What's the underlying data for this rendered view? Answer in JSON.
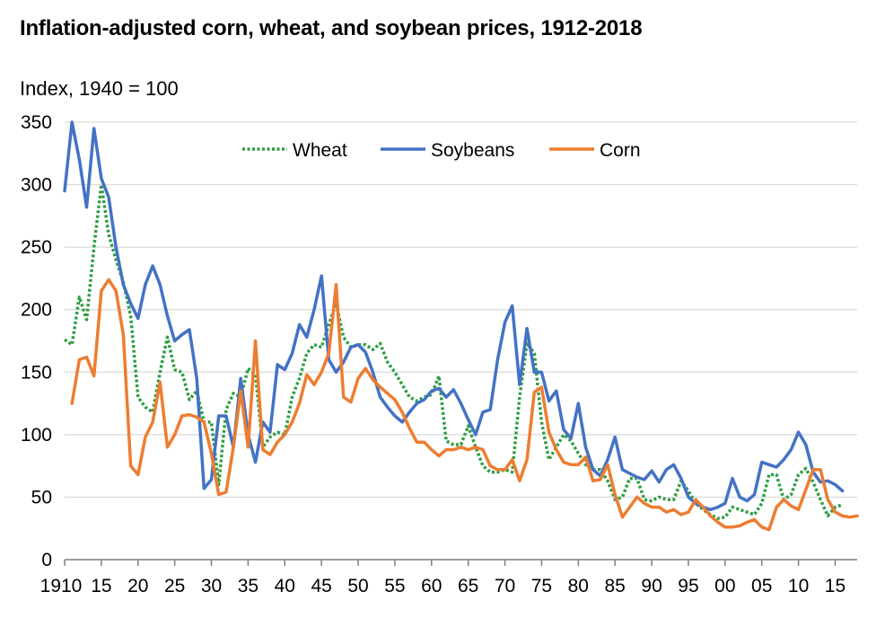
{
  "chart_data": {
    "type": "line",
    "title": "Inflation-adjusted corn, wheat, and soybean prices, 1912-2018",
    "ylabel": "Index, 1940 = 100",
    "xlabel": "",
    "xlim": [
      1910,
      2018
    ],
    "ylim": [
      0,
      350
    ],
    "grid": true,
    "legend_position": "top",
    "x_ticks": [
      1910,
      1915,
      1920,
      1925,
      1930,
      1935,
      1940,
      1945,
      1950,
      1955,
      1960,
      1965,
      1970,
      1975,
      1980,
      1985,
      1990,
      1995,
      2000,
      2005,
      2010,
      2015
    ],
    "x_tick_labels": [
      "1910",
      "15",
      "20",
      "25",
      "30",
      "35",
      "40",
      "45",
      "50",
      "55",
      "60",
      "65",
      "70",
      "75",
      "80",
      "85",
      "90",
      "95",
      "00",
      "05",
      "10",
      "15"
    ],
    "y_ticks": [
      0,
      50,
      100,
      150,
      200,
      250,
      300,
      350
    ],
    "y_tick_labels": [
      "0",
      "50",
      "100",
      "150",
      "200",
      "250",
      "300",
      "350"
    ],
    "series": [
      {
        "name": "Wheat",
        "color": "#2e9e44",
        "style": "dotted",
        "x": [
          1910,
          1911,
          1912,
          1913,
          1914,
          1915,
          1916,
          1917,
          1918,
          1919,
          1920,
          1921,
          1922,
          1923,
          1924,
          1925,
          1926,
          1927,
          1928,
          1929,
          1930,
          1931,
          1932,
          1933,
          1934,
          1935,
          1936,
          1937,
          1938,
          1939,
          1940,
          1941,
          1942,
          1943,
          1944,
          1945,
          1946,
          1947,
          1948,
          1949,
          1950,
          1951,
          1952,
          1953,
          1954,
          1955,
          1956,
          1957,
          1958,
          1959,
          1960,
          1961,
          1962,
          1963,
          1964,
          1965,
          1966,
          1967,
          1968,
          1969,
          1970,
          1971,
          1972,
          1973,
          1974,
          1975,
          1976,
          1977,
          1978,
          1979,
          1980,
          1981,
          1982,
          1983,
          1984,
          1985,
          1986,
          1987,
          1988,
          1989,
          1990,
          1991,
          1992,
          1993,
          1994,
          1995,
          1996,
          1997,
          1998,
          1999,
          2000,
          2001,
          2002,
          2003,
          2004,
          2005,
          2006,
          2007,
          2008,
          2009,
          2010,
          2011,
          2012,
          2013,
          2014,
          2015,
          2016
        ],
        "values": [
          176,
          172,
          210,
          192,
          250,
          300,
          260,
          240,
          222,
          195,
          130,
          122,
          118,
          150,
          178,
          152,
          150,
          128,
          135,
          110,
          110,
          60,
          120,
          133,
          130,
          153,
          148,
          90,
          98,
          102,
          100,
          130,
          145,
          165,
          172,
          170,
          188,
          205,
          178,
          170,
          172,
          172,
          168,
          173,
          158,
          150,
          140,
          130,
          127,
          130,
          132,
          147,
          95,
          92,
          92,
          107,
          90,
          75,
          70,
          70,
          72,
          70,
          130,
          173,
          165,
          110,
          80,
          90,
          100,
          95,
          85,
          76,
          72,
          72,
          63,
          48,
          50,
          65,
          65,
          48,
          47,
          50,
          48,
          48,
          63,
          55,
          45,
          40,
          36,
          33,
          34,
          42,
          40,
          38,
          36,
          45,
          68,
          68,
          48,
          52,
          68,
          73,
          62,
          48,
          35,
          42,
          44
        ]
      },
      {
        "name": "Soybeans",
        "color": "#4472c4",
        "style": "solid",
        "x": [
          1910,
          1911,
          1912,
          1913,
          1914,
          1915,
          1916,
          1917,
          1918,
          1919,
          1920,
          1921,
          1922,
          1923,
          1924,
          1925,
          1926,
          1927,
          1928,
          1929,
          1930,
          1931,
          1932,
          1933,
          1934,
          1935,
          1936,
          1937,
          1938,
          1939,
          1940,
          1941,
          1942,
          1943,
          1944,
          1945,
          1946,
          1947,
          1948,
          1949,
          1950,
          1951,
          1952,
          1953,
          1954,
          1955,
          1956,
          1957,
          1958,
          1959,
          1960,
          1961,
          1962,
          1963,
          1964,
          1965,
          1966,
          1967,
          1968,
          1969,
          1970,
          1971,
          1972,
          1973,
          1974,
          1975,
          1976,
          1977,
          1978,
          1979,
          1980,
          1981,
          1982,
          1983,
          1984,
          1985,
          1986,
          1987,
          1988,
          1989,
          1990,
          1991,
          1992,
          1993,
          1994,
          1995,
          1996,
          1997,
          1998,
          1999,
          2000,
          2001,
          2002,
          2003,
          2004,
          2005,
          2006,
          2007,
          2008,
          2009,
          2010,
          2011,
          2012,
          2013,
          2014,
          2015,
          2016,
          2017
        ],
        "values": [
          295,
          350,
          320,
          282,
          345,
          305,
          290,
          250,
          220,
          205,
          193,
          220,
          235,
          220,
          195,
          175,
          180,
          184,
          145,
          57,
          64,
          115,
          115,
          90,
          145,
          100,
          78,
          110,
          102,
          156,
          152,
          165,
          188,
          178,
          200,
          227,
          160,
          150,
          158,
          170,
          172,
          166,
          150,
          130,
          122,
          115,
          110,
          118,
          125,
          128,
          135,
          137,
          130,
          136,
          125,
          112,
          100,
          118,
          120,
          160,
          190,
          203,
          140,
          185,
          150,
          150,
          127,
          135,
          104,
          97,
          125,
          90,
          72,
          67,
          80,
          98,
          72,
          69,
          66,
          64,
          71,
          62,
          72,
          76,
          65,
          50,
          45,
          42,
          40,
          42,
          45,
          65,
          50,
          47,
          52,
          78,
          76,
          74,
          80,
          88,
          102,
          92,
          70,
          62,
          63,
          60,
          55,
          null
        ]
      },
      {
        "name": "Corn",
        "color": "#ed7d31",
        "style": "solid",
        "x": [
          1910,
          1911,
          1912,
          1913,
          1914,
          1915,
          1916,
          1917,
          1918,
          1919,
          1920,
          1921,
          1922,
          1923,
          1924,
          1925,
          1926,
          1927,
          1928,
          1929,
          1930,
          1931,
          1932,
          1933,
          1934,
          1935,
          1936,
          1937,
          1938,
          1939,
          1940,
          1941,
          1942,
          1943,
          1944,
          1945,
          1946,
          1947,
          1948,
          1949,
          1950,
          1951,
          1952,
          1953,
          1954,
          1955,
          1956,
          1957,
          1958,
          1959,
          1960,
          1961,
          1962,
          1963,
          1964,
          1965,
          1966,
          1967,
          1968,
          1969,
          1970,
          1971,
          1972,
          1973,
          1974,
          1975,
          1976,
          1977,
          1978,
          1979,
          1980,
          1981,
          1982,
          1983,
          1984,
          1985,
          1986,
          1987,
          1988,
          1989,
          1990,
          1991,
          1992,
          1993,
          1994,
          1995,
          1996,
          1997,
          1998,
          1999,
          2000,
          2001,
          2002,
          2003,
          2004,
          2005,
          2006,
          2007,
          2008,
          2009,
          2010,
          2011,
          2012,
          2013,
          2014,
          2015,
          2016,
          2017,
          2018
        ],
        "values": [
          null,
          125,
          160,
          162,
          147,
          215,
          224,
          215,
          180,
          75,
          68,
          98,
          110,
          142,
          90,
          100,
          115,
          116,
          114,
          110,
          85,
          52,
          54,
          90,
          135,
          90,
          175,
          88,
          84,
          94,
          100,
          110,
          125,
          148,
          140,
          150,
          165,
          220,
          130,
          126,
          145,
          153,
          144,
          138,
          133,
          128,
          118,
          105,
          94,
          94,
          88,
          83,
          88,
          88,
          90,
          88,
          90,
          88,
          75,
          72,
          72,
          80,
          63,
          80,
          134,
          138,
          102,
          88,
          78,
          76,
          76,
          82,
          63,
          64,
          76,
          52,
          34,
          42,
          50,
          45,
          42,
          42,
          38,
          40,
          36,
          38,
          48,
          42,
          35,
          30,
          26,
          26,
          27,
          30,
          32,
          26,
          24,
          42,
          48,
          43,
          40,
          56,
          72,
          72,
          48,
          38,
          35,
          34,
          35
        ]
      }
    ]
  }
}
